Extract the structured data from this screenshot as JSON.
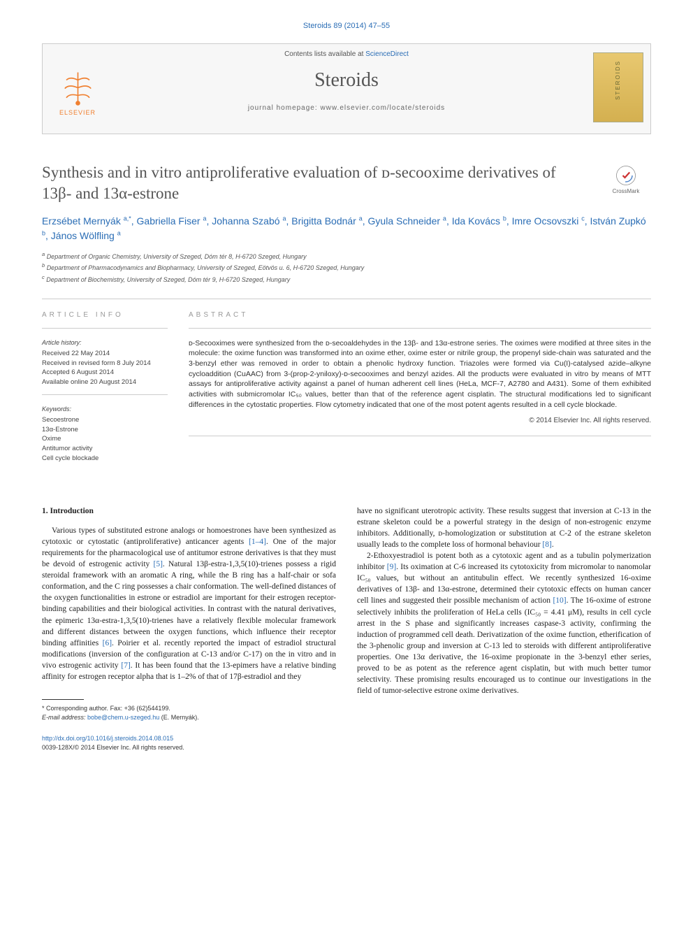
{
  "top_citation": "Steroids 89 (2014) 47–55",
  "masthead": {
    "contents_line_pre": "Contents lists available at ",
    "contents_link": "ScienceDirect",
    "journal": "Steroids",
    "homepage_label": "journal homepage: ",
    "homepage_url": "www.elsevier.com/locate/steroids",
    "publisher": "ELSEVIER",
    "cover_label": "STEROIDS"
  },
  "title": "Synthesis and in vitro antiproliferative evaluation of ᴅ-secooxime derivatives of 13β- and 13α-estrone",
  "crossmark": "CrossMark",
  "authors_html": "Erzsébet Mernyák <sup>a,*</sup>, Gabriella Fiser <sup>a</sup>, Johanna Szabó <sup>a</sup>, Brigitta Bodnár <sup>a</sup>, Gyula Schneider <sup>a</sup>, Ida Kovács <sup>b</sup>, Imre Ocsovszki <sup>c</sup>, István Zupkó <sup>b</sup>, János Wölfling <sup>a</sup>",
  "affiliations": {
    "a": "Department of Organic Chemistry, University of Szeged, Dóm tér 8, H-6720 Szeged, Hungary",
    "b": "Department of Pharmacodynamics and Biopharmacy, University of Szeged, Eötvös u. 6, H-6720 Szeged, Hungary",
    "c": "Department of Biochemistry, University of Szeged, Dóm tér 9, H-6720 Szeged, Hungary"
  },
  "article_info": {
    "heading": "ARTICLE INFO",
    "history_label": "Article history:",
    "history": [
      "Received 22 May 2014",
      "Received in revised form 8 July 2014",
      "Accepted 6 August 2014",
      "Available online 20 August 2014"
    ],
    "keywords_label": "Keywords:",
    "keywords": [
      "Secoestrone",
      "13α-Estrone",
      "Oxime",
      "Antitumor activity",
      "Cell cycle blockade"
    ]
  },
  "abstract": {
    "heading": "ABSTRACT",
    "text": "ᴅ-Secooximes were synthesized from the ᴅ-secoaldehydes in the 13β- and 13α-estrone series. The oximes were modified at three sites in the molecule: the oxime function was transformed into an oxime ether, oxime ester or nitrile group, the propenyl side-chain was saturated and the 3-benzyl ether was removed in order to obtain a phenolic hydroxy function. Triazoles were formed via Cu(I)-catalysed azide–alkyne cycloaddition (CuAAC) from 3-(prop-2-yniloxy)-ᴅ-secooximes and benzyl azides. All the products were evaluated in vitro by means of MTT assays for antiproliferative activity against a panel of human adherent cell lines (HeLa, MCF-7, A2780 and A431). Some of them exhibited activities with submicromolar IC₅₀ values, better than that of the reference agent cisplatin. The structural modifications led to significant differences in the cytostatic properties. Flow cytometry indicated that one of the most potent agents resulted in a cell cycle blockade.",
    "copyright": "© 2014 Elsevier Inc. All rights reserved."
  },
  "section1": {
    "heading": "1. Introduction",
    "col1": "Various types of substituted estrone analogs or homoestrones have been synthesized as cytotoxic or cytostatic (antiproliferative) anticancer agents [1–4]. One of the major requirements for the pharmacological use of antitumor estrone derivatives is that they must be devoid of estrogenic activity [5]. Natural 13β-estra-1,3,5(10)-trienes possess a rigid steroidal framework with an aromatic A ring, while the B ring has a half-chair or sofa conformation, and the C ring possesses a chair conformation. The well-defined distances of the oxygen functionalities in estrone or estradiol are important for their estrogen receptor-binding capabilities and their biological activities. In contrast with the natural derivatives, the epimeric 13α-estra-1,3,5(10)-trienes have a relatively flexible molecular framework and different distances between the oxygen functions, which influence their receptor binding affinities [6]. Poirier et al. recently reported the impact of estradiol structural modifications (inversion of the configuration at C-13 and/or C-17) on the in vitro and in vivo estrogenic activity [7]. It has been found that the 13-epimers have a relative binding affinity for estrogen receptor alpha that is 1–2% of that of 17β-estradiol and they",
    "col2a": "have no significant uterotropic activity. These results suggest that inversion at C-13 in the estrane skeleton could be a powerful strategy in the design of non-estrogenic enzyme inhibitors. Additionally, ᴅ-homologization or substitution at C-2 of the estrane skeleton usually leads to the complete loss of hormonal behaviour [8].",
    "col2b": "2-Ethoxyestradiol is potent both as a cytotoxic agent and as a tubulin polymerization inhibitor [9]. Its oximation at C-6 increased its cytotoxicity from micromolar to nanomolar IC₅₀ values, but without an antitubulin effect. We recently synthesized 16-oxime derivatives of 13β- and 13α-estrone, determined their cytotoxic effects on human cancer cell lines and suggested their possible mechanism of action [10]. The 16-oxime of estrone selectively inhibits the proliferation of HeLa cells (IC₅₀ = 4.41 μM), results in cell cycle arrest in the S phase and significantly increases caspase-3 activity, confirming the induction of programmed cell death. Derivatization of the oxime function, etherification of the 3-phenolic group and inversion at C-13 led to steroids with different antiproliferative properties. One 13α derivative, the 16-oxime propionate in the 3-benzyl ether series, proved to be as potent as the reference agent cisplatin, but with much better tumor selectivity. These promising results encouraged us to continue our investigations in the field of tumor-selective estrone oxime derivatives."
  },
  "footnote": {
    "corr": "* Corresponding author. Fax: +36 (62)544199.",
    "email_label": "E-mail address: ",
    "email": "bobe@chem.u-szeged.hu",
    "email_who": " (E. Mernyák)."
  },
  "doi": "http://dx.doi.org/10.1016/j.steroids.2014.08.015",
  "issn": "0039-128X/© 2014 Elsevier Inc. All rights reserved.",
  "colors": {
    "link": "#2a6db5",
    "text": "#333333",
    "heading_grey": "#999999",
    "border": "#cccccc",
    "elsevier_orange": "#f08030",
    "cover_bg_top": "#e8c870",
    "cover_bg_bot": "#d4b050"
  },
  "citations": [
    "[1–4]",
    "[5]",
    "[6]",
    "[7]",
    "[8]",
    "[9]",
    "[10]"
  ]
}
